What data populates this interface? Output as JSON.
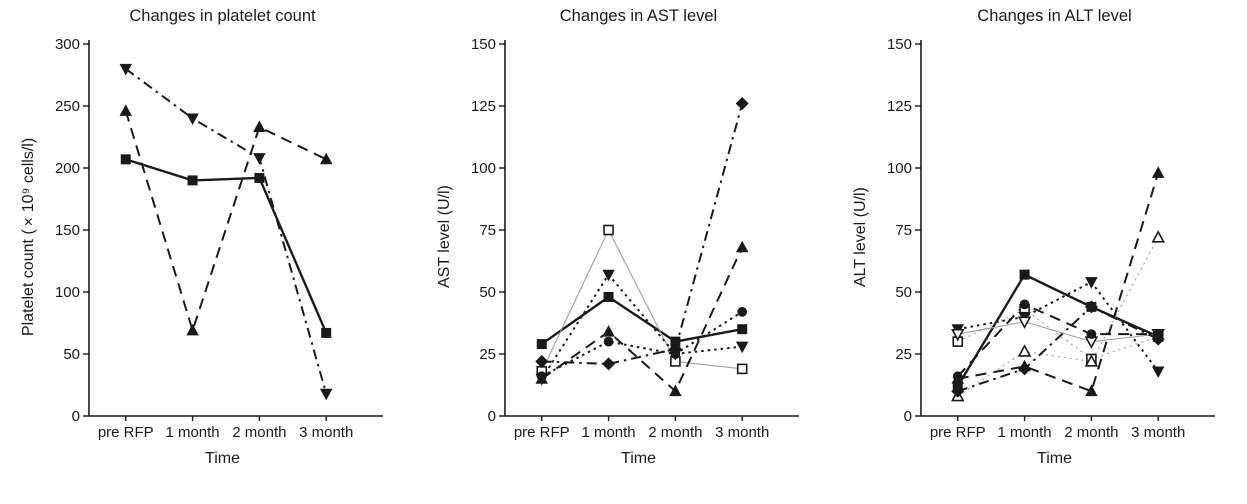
{
  "figure": {
    "background": "#ffffff",
    "ink_color": "#1a1a1a",
    "thin_line_color": "#9e9e9e"
  },
  "chart_data": [
    {
      "type": "line",
      "title": "Changes in platelet count",
      "xlabel": "Time",
      "ylabel": "Platelet count (×10⁹ cells/l)",
      "categories": [
        "pre RFP",
        "1 month",
        "2 month",
        "3 month"
      ],
      "ylim": [
        0,
        300
      ],
      "yticks": [
        0,
        50,
        100,
        150,
        200,
        250,
        300
      ],
      "grid": false,
      "legend": "none",
      "series": [
        {
          "name": "patient-filled-square",
          "marker": "square",
          "fill": "filled",
          "line": "solid",
          "values": [
            207,
            190,
            192,
            67
          ]
        },
        {
          "name": "patient-filled-triangle-down",
          "marker": "triangle-down",
          "fill": "filled",
          "line": "dashdot",
          "values": [
            280,
            240,
            208,
            18
          ]
        },
        {
          "name": "patient-filled-triangle-up",
          "marker": "triangle-up",
          "fill": "filled",
          "line": "dashed",
          "values": [
            246,
            69,
            233,
            207
          ]
        }
      ]
    },
    {
      "type": "line",
      "title": "Changes in AST level",
      "xlabel": "Time",
      "ylabel": "AST level (U/l)",
      "categories": [
        "pre RFP",
        "1 month",
        "2 month",
        "3 month"
      ],
      "ylim": [
        0,
        150
      ],
      "yticks": [
        0,
        25,
        50,
        75,
        100,
        125,
        150
      ],
      "grid": false,
      "legend": "none",
      "series": [
        {
          "name": "patient-filled-square",
          "marker": "square",
          "fill": "filled",
          "line": "solid",
          "values": [
            29,
            48,
            30,
            35
          ]
        },
        {
          "name": "patient-open-square",
          "marker": "square",
          "fill": "open",
          "line": "thin",
          "values": [
            18,
            75,
            22,
            19
          ]
        },
        {
          "name": "patient-filled-triangle-down",
          "marker": "triangle-down",
          "fill": "filled",
          "line": "dotted",
          "values": [
            15,
            57,
            25,
            28
          ]
        },
        {
          "name": "patient-filled-triangle-up",
          "marker": "triangle-up",
          "fill": "filled",
          "line": "dashed",
          "values": [
            15,
            34,
            10,
            68
          ]
        },
        {
          "name": "patient-filled-circle",
          "marker": "circle",
          "fill": "filled",
          "line": "dotted",
          "values": [
            16,
            30,
            25,
            42
          ]
        },
        {
          "name": "patient-filled-diamond",
          "marker": "diamond",
          "fill": "filled",
          "line": "dashdot",
          "values": [
            22,
            21,
            27,
            126
          ]
        }
      ]
    },
    {
      "type": "line",
      "title": "Changes in ALT level",
      "xlabel": "Time",
      "ylabel": "ALT level (U/l)",
      "categories": [
        "pre RFP",
        "1 month",
        "2 month",
        "3 month"
      ],
      "ylim": [
        0,
        150
      ],
      "yticks": [
        0,
        25,
        50,
        75,
        100,
        125,
        150
      ],
      "grid": false,
      "legend": "none",
      "series": [
        {
          "name": "patient-filled-square",
          "marker": "square",
          "fill": "filled",
          "line": "solid",
          "values": [
            12,
            57,
            44,
            32
          ]
        },
        {
          "name": "patient-open-square",
          "marker": "square",
          "fill": "open",
          "line": "thin-dotted",
          "values": [
            30,
            43,
            23,
            32
          ]
        },
        {
          "name": "patient-filled-triangle-down",
          "marker": "triangle-down",
          "fill": "filled",
          "line": "dotted",
          "values": [
            35,
            40,
            54,
            18
          ]
        },
        {
          "name": "patient-open-triangle-down",
          "marker": "triangle-down",
          "fill": "open",
          "line": "thin",
          "values": [
            33,
            38,
            30,
            33
          ]
        },
        {
          "name": "patient-filled-triangle-up",
          "marker": "triangle-up",
          "fill": "filled",
          "line": "dashed",
          "values": [
            15,
            20,
            10,
            98
          ]
        },
        {
          "name": "patient-open-triangle-up",
          "marker": "triangle-up",
          "fill": "open",
          "line": "thin-dotted",
          "values": [
            8,
            26,
            22,
            72
          ]
        },
        {
          "name": "patient-filled-circle",
          "marker": "circle",
          "fill": "filled",
          "line": "dashed",
          "values": [
            16,
            45,
            33,
            33
          ]
        },
        {
          "name": "patient-filled-diamond",
          "marker": "diamond",
          "fill": "filled",
          "line": "dashdot",
          "values": [
            10,
            19,
            44,
            31
          ]
        }
      ]
    }
  ]
}
